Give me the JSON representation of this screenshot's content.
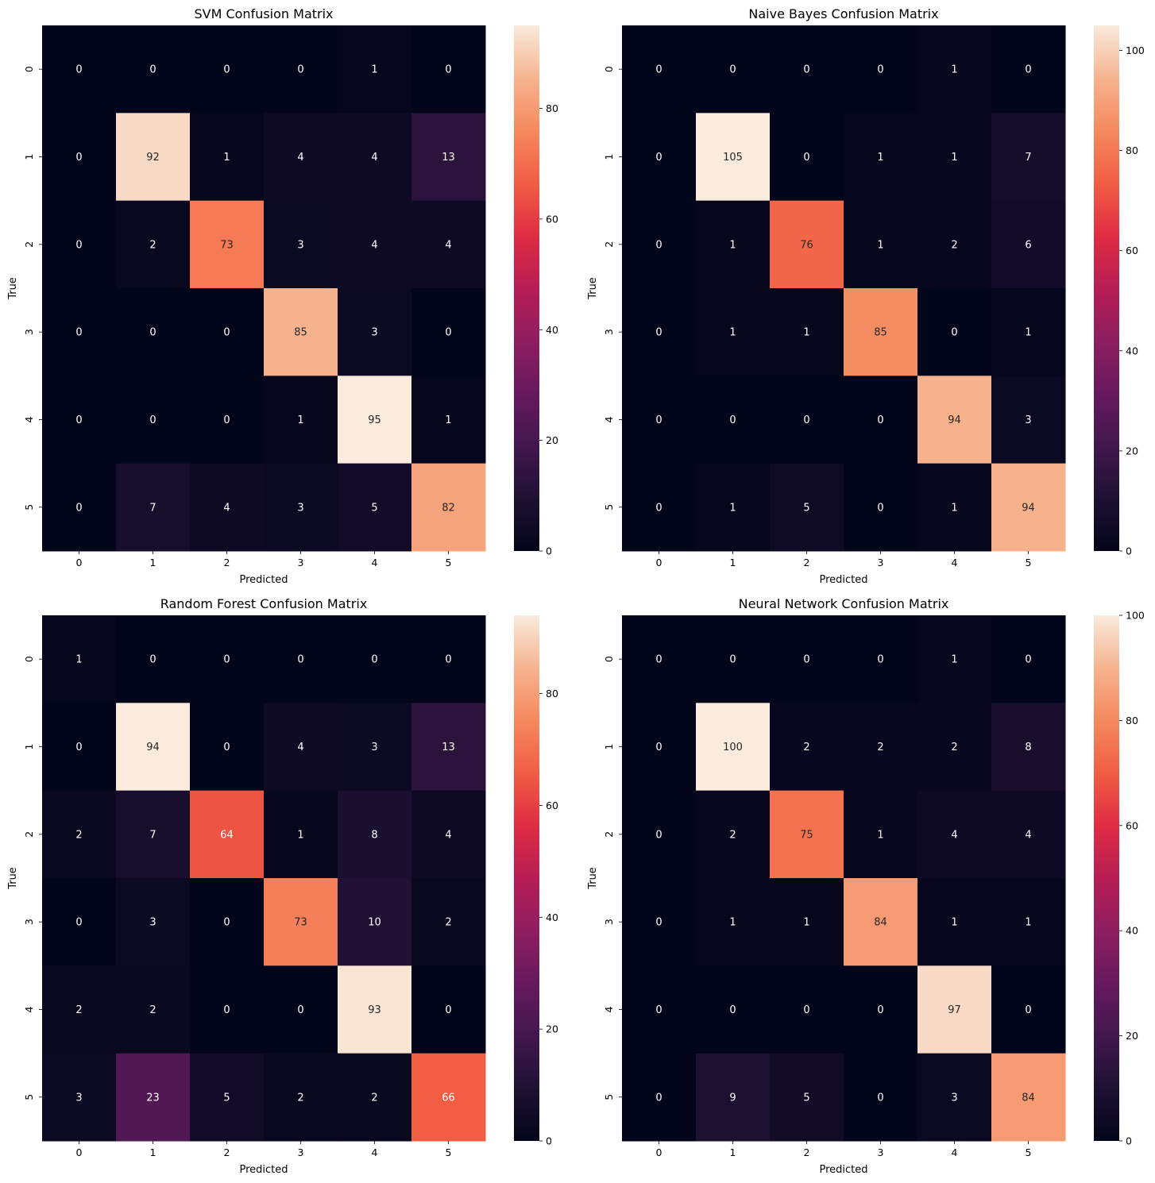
{
  "chart_data": [
    {
      "type": "heatmap",
      "title": "SVM Confusion Matrix",
      "xlabel": "Predicted",
      "ylabel": "True",
      "x_ticks": [
        "0",
        "1",
        "2",
        "3",
        "4",
        "5"
      ],
      "y_ticks": [
        "0",
        "1",
        "2",
        "3",
        "4",
        "5"
      ],
      "values": [
        [
          0,
          0,
          0,
          0,
          1,
          0
        ],
        [
          0,
          92,
          1,
          4,
          4,
          13
        ],
        [
          0,
          2,
          73,
          3,
          4,
          4
        ],
        [
          0,
          0,
          0,
          85,
          3,
          0
        ],
        [
          0,
          0,
          0,
          1,
          95,
          1
        ],
        [
          0,
          7,
          4,
          3,
          5,
          82
        ]
      ],
      "colorbar": {
        "min": 0,
        "max": 95,
        "ticks": [
          0,
          20,
          40,
          60,
          80
        ]
      },
      "colormap": "rocket"
    },
    {
      "type": "heatmap",
      "title": "Naive Bayes Confusion Matrix",
      "xlabel": "Predicted",
      "ylabel": "True",
      "x_ticks": [
        "0",
        "1",
        "2",
        "3",
        "4",
        "5"
      ],
      "y_ticks": [
        "0",
        "1",
        "2",
        "3",
        "4",
        "5"
      ],
      "values": [
        [
          0,
          0,
          0,
          0,
          1,
          0
        ],
        [
          0,
          105,
          0,
          1,
          1,
          7
        ],
        [
          0,
          1,
          76,
          1,
          2,
          6
        ],
        [
          0,
          1,
          1,
          85,
          0,
          1
        ],
        [
          0,
          0,
          0,
          0,
          94,
          3
        ],
        [
          0,
          1,
          5,
          0,
          1,
          94
        ]
      ],
      "colorbar": {
        "min": 0,
        "max": 105,
        "ticks": [
          0,
          20,
          40,
          60,
          80,
          100
        ]
      },
      "colormap": "rocket"
    },
    {
      "type": "heatmap",
      "title": "Random Forest Confusion Matrix",
      "xlabel": "Predicted",
      "ylabel": "True",
      "x_ticks": [
        "0",
        "1",
        "2",
        "3",
        "4",
        "5"
      ],
      "y_ticks": [
        "0",
        "1",
        "2",
        "3",
        "4",
        "5"
      ],
      "values": [
        [
          1,
          0,
          0,
          0,
          0,
          0
        ],
        [
          0,
          94,
          0,
          4,
          3,
          13
        ],
        [
          2,
          7,
          64,
          1,
          8,
          4
        ],
        [
          0,
          3,
          0,
          73,
          10,
          2
        ],
        [
          2,
          2,
          0,
          0,
          93,
          0
        ],
        [
          3,
          23,
          5,
          2,
          2,
          66
        ]
      ],
      "colorbar": {
        "min": 0,
        "max": 94,
        "ticks": [
          0,
          20,
          40,
          60,
          80
        ]
      },
      "colormap": "rocket"
    },
    {
      "type": "heatmap",
      "title": "Neural Network Confusion Matrix",
      "xlabel": "Predicted",
      "ylabel": "True",
      "x_ticks": [
        "0",
        "1",
        "2",
        "3",
        "4",
        "5"
      ],
      "y_ticks": [
        "0",
        "1",
        "2",
        "3",
        "4",
        "5"
      ],
      "values": [
        [
          0,
          0,
          0,
          0,
          1,
          0
        ],
        [
          0,
          100,
          2,
          2,
          2,
          8
        ],
        [
          0,
          2,
          75,
          1,
          4,
          4
        ],
        [
          0,
          1,
          1,
          84,
          1,
          1
        ],
        [
          0,
          0,
          0,
          0,
          97,
          0
        ],
        [
          0,
          9,
          5,
          0,
          3,
          84
        ]
      ],
      "colorbar": {
        "min": 0,
        "max": 100,
        "ticks": [
          0,
          20,
          40,
          60,
          80,
          100
        ]
      },
      "colormap": "rocket"
    }
  ]
}
